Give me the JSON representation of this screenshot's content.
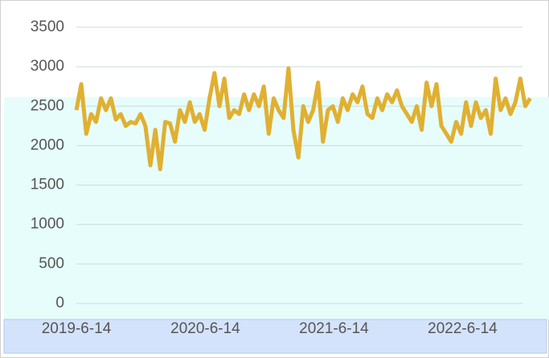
{
  "chart_data": {
    "type": "line",
    "x": [
      "2019-6-14",
      "2019-6-28",
      "2019-7-12",
      "2019-7-26",
      "2019-8-9",
      "2019-8-23",
      "2019-9-6",
      "2019-9-20",
      "2019-10-4",
      "2019-10-18",
      "2019-11-1",
      "2019-11-15",
      "2019-11-29",
      "2019-12-13",
      "2019-12-27",
      "2020-1-10",
      "2020-1-24",
      "2020-2-7",
      "2020-2-21",
      "2020-3-6",
      "2020-3-20",
      "2020-4-3",
      "2020-4-17",
      "2020-5-1",
      "2020-5-15",
      "2020-5-29",
      "2020-6-12",
      "2020-6-26",
      "2020-7-10",
      "2020-7-24",
      "2020-8-7",
      "2020-8-21",
      "2020-9-4",
      "2020-9-18",
      "2020-10-2",
      "2020-10-16",
      "2020-10-30",
      "2020-11-13",
      "2020-11-27",
      "2020-12-11",
      "2020-12-25",
      "2021-1-8",
      "2021-1-22",
      "2021-2-5",
      "2021-2-19",
      "2021-3-5",
      "2021-3-19",
      "2021-4-2",
      "2021-4-16",
      "2021-4-30",
      "2021-5-14",
      "2021-5-28",
      "2021-6-11",
      "2021-6-25",
      "2021-7-9",
      "2021-7-23",
      "2021-8-6",
      "2021-8-20",
      "2021-9-3",
      "2021-9-17",
      "2021-10-1",
      "2021-10-15",
      "2021-10-29",
      "2021-11-12",
      "2021-11-26",
      "2021-12-10",
      "2021-12-24",
      "2022-1-7",
      "2022-1-21",
      "2022-2-4",
      "2022-2-18",
      "2022-3-4",
      "2022-3-18",
      "2022-4-1",
      "2022-4-15",
      "2022-4-29",
      "2022-5-13",
      "2022-5-27",
      "2022-6-10",
      "2022-6-24",
      "2022-7-8",
      "2022-7-22",
      "2022-8-5",
      "2022-8-19",
      "2022-9-2",
      "2022-9-16",
      "2022-9-30",
      "2022-10-14",
      "2022-10-28",
      "2022-11-11",
      "2022-11-25",
      "2022-12-9",
      "2022-12-23"
    ],
    "values": [
      2450,
      2780,
      2150,
      2400,
      2300,
      2600,
      2450,
      2600,
      2330,
      2400,
      2250,
      2300,
      2280,
      2400,
      2250,
      1750,
      2200,
      1700,
      2300,
      2280,
      2050,
      2450,
      2300,
      2550,
      2300,
      2400,
      2200,
      2600,
      2920,
      2500,
      2850,
      2350,
      2450,
      2400,
      2650,
      2450,
      2650,
      2500,
      2750,
      2150,
      2600,
      2450,
      2350,
      2980,
      2200,
      1850,
      2500,
      2300,
      2450,
      2800,
      2050,
      2450,
      2500,
      2300,
      2600,
      2450,
      2650,
      2550,
      2750,
      2400,
      2350,
      2600,
      2450,
      2650,
      2550,
      2700,
      2500,
      2400,
      2300,
      2500,
      2200,
      2800,
      2500,
      2780,
      2250,
      2150,
      2050,
      2300,
      2150,
      2550,
      2250,
      2550,
      2350,
      2450,
      2150,
      2850,
      2450,
      2600,
      2400,
      2550,
      2850,
      2500,
      2600
    ],
    "color": "#e0b032",
    "xticks": [
      "2019-6-14",
      "2020-6-14",
      "2021-6-14",
      "2022-6-14"
    ],
    "ylim": [
      0,
      3500
    ],
    "yticks": [
      0,
      500,
      1000,
      1500,
      2000,
      2500,
      3000,
      3500
    ],
    "grid": true
  }
}
